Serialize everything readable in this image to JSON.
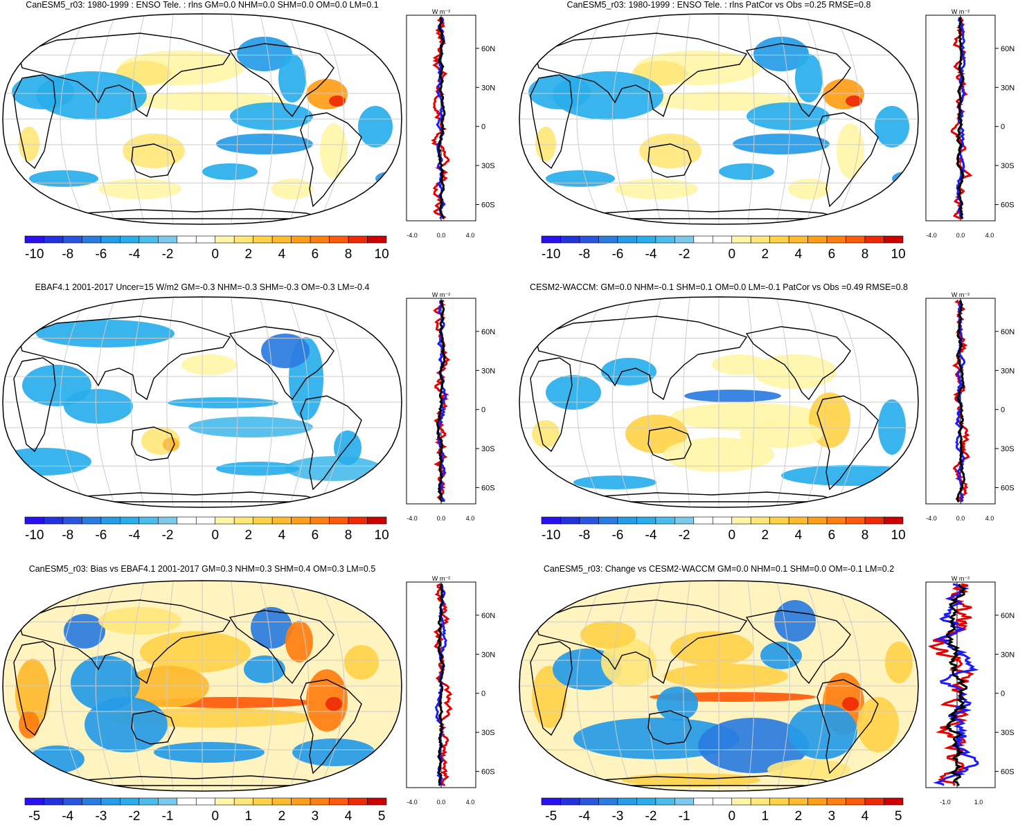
{
  "panels": [
    {
      "id": "p1",
      "title": "CanESM5_r03: 1980-1999 : ENSO Tele. : rlns GM=0.0 NHM=0.0 SHM=0.0 OM=0.0 LM=0.1",
      "scale": "large",
      "profile_ticks": [
        "-4.0",
        "0.0",
        "4.0"
      ],
      "style": "enso"
    },
    {
      "id": "p2",
      "title": "CanESM5_r03: 1980-1999 : ENSO Tele. : rlns PatCor vs Obs =0.25 RMSE=0.8",
      "scale": "large",
      "profile_ticks": [
        "-4.0",
        "0.0",
        "4.0"
      ],
      "style": "enso"
    },
    {
      "id": "p3",
      "title": "EBAF4.1 2001-2017 Uncer=15 W/m2 GM=-0.3 NHM=-0.3 SHM=-0.3 OM=-0.3 LM=-0.4",
      "scale": "large",
      "profile_ticks": [
        "-4.0",
        "0.0",
        "4.0"
      ],
      "style": "obs"
    },
    {
      "id": "p4",
      "title": "CESM2-WACCM: GM=0.0 NHM=-0.1 SHM=0.1 OM=0.0 LM=-0.1 PatCor vs Obs =0.49 RMSE=0.8",
      "scale": "large",
      "profile_ticks": [
        "-4.0",
        "0.0",
        "4.0"
      ],
      "style": "cesm"
    },
    {
      "id": "p5",
      "title": "CanESM5_r03: Bias vs EBAF4.1 2001-2017 GM=0.3 NHM=0.3 SHM=0.4 OM=0.3 LM=0.5",
      "scale": "small",
      "profile_ticks": [
        "-4.0",
        "0.0",
        "4.0"
      ],
      "style": "bias"
    },
    {
      "id": "p6",
      "title": "CanESM5_r03: Change vs CESM2-WACCM GM=0.0 NHM=0.1 SHM=0.0 OM=-0.1 LM=0.2",
      "scale": "small",
      "profile_ticks": [
        "-1.0",
        "1.0"
      ],
      "style": "change"
    }
  ],
  "profile_unit": "W m⁻²",
  "lat_labels": [
    "60N",
    "30N",
    "0",
    "30S",
    "60S"
  ],
  "colorbar_large": [
    "-10",
    "-8",
    "-6",
    "-4",
    "-2",
    "0",
    "2",
    "4",
    "6",
    "8",
    "10"
  ],
  "colorbar_small": [
    "-5",
    "-4",
    "-3",
    "-2",
    "-1",
    "0",
    "1",
    "2",
    "3",
    "4",
    "5"
  ],
  "colors": {
    "colorbar": [
      "#2a10ee",
      "#2233dd",
      "#2a55e0",
      "#2a7ce0",
      "#269be6",
      "#29aeea",
      "#4bbcec",
      "#7cc9ec",
      "#ffffff",
      "#ffffff",
      "#fff5a8",
      "#ffe77a",
      "#ffd24a",
      "#ffba2e",
      "#ff9e18",
      "#ff7e10",
      "#ff5a0a",
      "#ee2a05",
      "#cc0000"
    ],
    "series": [
      "#e60000",
      "#1a1aff",
      "#000000"
    ]
  }
}
